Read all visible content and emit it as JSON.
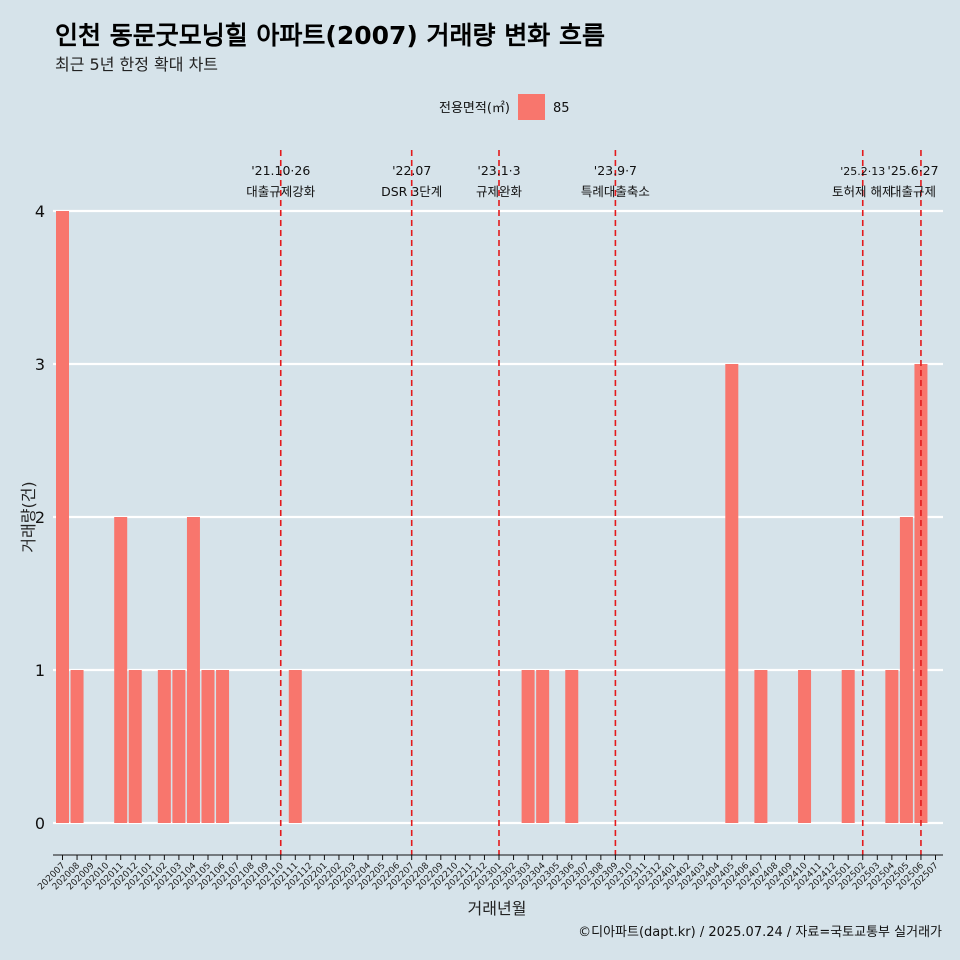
{
  "title": "인천 동문굿모닝힐 아파트(2007) 거래량 변화 흐름",
  "subtitle": "최근 5년 한정 확대 차트",
  "caption": "©디아파트(dapt.kr) / 2025.07.24 / 자료=국토교통부 실거래가",
  "legend": {
    "title": "전용면적(㎡)",
    "item": "85",
    "color": "#f8766d"
  },
  "colors": {
    "background": "#d6e3ea",
    "bar": "#f8766d",
    "grid": "#ffffff",
    "vline": "#e31a1c"
  },
  "chart_data": {
    "type": "bar",
    "xlabel": "거래년월",
    "ylabel": "거래량(건)",
    "ylim": [
      0,
      4
    ],
    "yticks": [
      0,
      1,
      2,
      3,
      4
    ],
    "grid": true,
    "legend_position": "top",
    "categories": [
      "202007",
      "202008",
      "202009",
      "202010",
      "202011",
      "202012",
      "202101",
      "202102",
      "202103",
      "202104",
      "202105",
      "202106",
      "202107",
      "202108",
      "202109",
      "202110",
      "202111",
      "202112",
      "202201",
      "202202",
      "202203",
      "202204",
      "202205",
      "202206",
      "202207",
      "202208",
      "202209",
      "202210",
      "202211",
      "202212",
      "202301",
      "202302",
      "202303",
      "202304",
      "202305",
      "202306",
      "202307",
      "202308",
      "202309",
      "202310",
      "202311",
      "202312",
      "202401",
      "202402",
      "202403",
      "202404",
      "202405",
      "202406",
      "202407",
      "202408",
      "202409",
      "202410",
      "202411",
      "202412",
      "202501",
      "202502",
      "202503",
      "202504",
      "202505",
      "202506",
      "202507"
    ],
    "series": [
      {
        "name": "85",
        "values": [
          4,
          1,
          0,
          0,
          2,
          1,
          0,
          1,
          1,
          2,
          1,
          1,
          0,
          0,
          0,
          0,
          1,
          0,
          0,
          0,
          0,
          0,
          0,
          0,
          0,
          0,
          0,
          0,
          0,
          0,
          0,
          0,
          1,
          1,
          0,
          1,
          0,
          0,
          0,
          0,
          0,
          0,
          0,
          0,
          0,
          0,
          3,
          0,
          1,
          0,
          0,
          1,
          0,
          0,
          1,
          0,
          0,
          1,
          2,
          3,
          0
        ]
      }
    ],
    "annotations": [
      {
        "at": "202110",
        "date": "'21.10·26",
        "label": "대출규제강화"
      },
      {
        "at": "202207",
        "date": "'22.07",
        "label": "DSR 3단계"
      },
      {
        "at": "202301",
        "date": "'23.1·3",
        "label": "규제완화"
      },
      {
        "at": "202309",
        "date": "'23.9·7",
        "label": "특례대출축소"
      },
      {
        "at": "202502",
        "date": "'25.2·13",
        "label": "토허제 해제"
      },
      {
        "at": "202506",
        "date": "'25.6·27",
        "label": "대출규제"
      }
    ]
  }
}
